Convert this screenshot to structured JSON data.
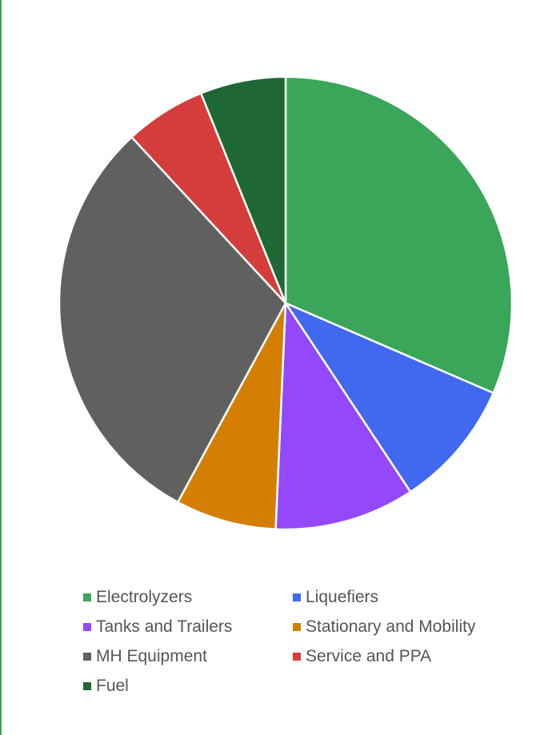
{
  "chart_data": {
    "type": "pie",
    "title": "",
    "legend_position": "bottom",
    "series": [
      {
        "values": [
          31.5,
          9.2,
          10.0,
          7.2,
          30.2,
          5.8,
          6.1
        ]
      }
    ],
    "categories": [
      "Electrolyzers",
      "Liquefiers",
      "Tanks and Trailers",
      "Stationary and Mobility",
      "MH Equipment",
      "Service and PPA",
      "Fuel"
    ],
    "colors": [
      "#3aa65a",
      "#4169f0",
      "#9448fa",
      "#d47f04",
      "#606060",
      "#d53d3d",
      "#1f6734"
    ]
  }
}
